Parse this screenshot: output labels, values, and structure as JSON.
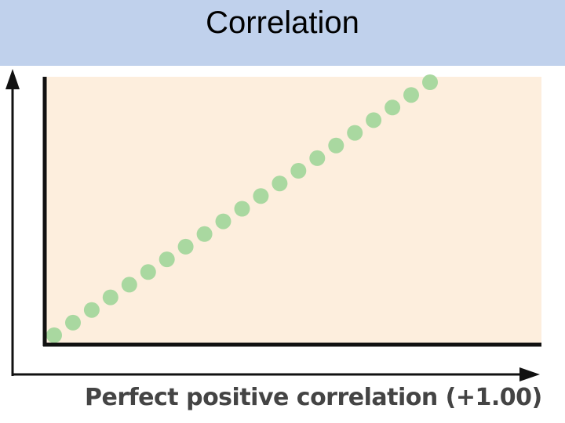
{
  "slide": {
    "title": "Correlation"
  },
  "colors": {
    "title_bar": "#c0d1ec",
    "plot_background": "#fdeedd",
    "points": "#a9d8a0",
    "axes": "#111111",
    "caption": "#444444"
  },
  "chart_data": {
    "type": "scatter",
    "title": "",
    "xlabel": "Perfect positive correlation (+1.00)",
    "ylabel": "",
    "xlim": [
      0,
      1
    ],
    "ylim": [
      0,
      1
    ],
    "grid": false,
    "x": [
      0.02,
      0.064,
      0.108,
      0.152,
      0.196,
      0.24,
      0.284,
      0.328,
      0.372,
      0.416,
      0.46,
      0.504,
      0.548,
      0.592,
      0.636,
      0.68,
      0.724,
      0.768,
      0.812,
      0.856,
      0.9
    ],
    "y": [
      0.02,
      0.069,
      0.118,
      0.167,
      0.216,
      0.265,
      0.314,
      0.363,
      0.412,
      0.461,
      0.51,
      0.559,
      0.608,
      0.657,
      0.706,
      0.755,
      0.804,
      0.853,
      0.902,
      0.951,
      1.0
    ]
  }
}
